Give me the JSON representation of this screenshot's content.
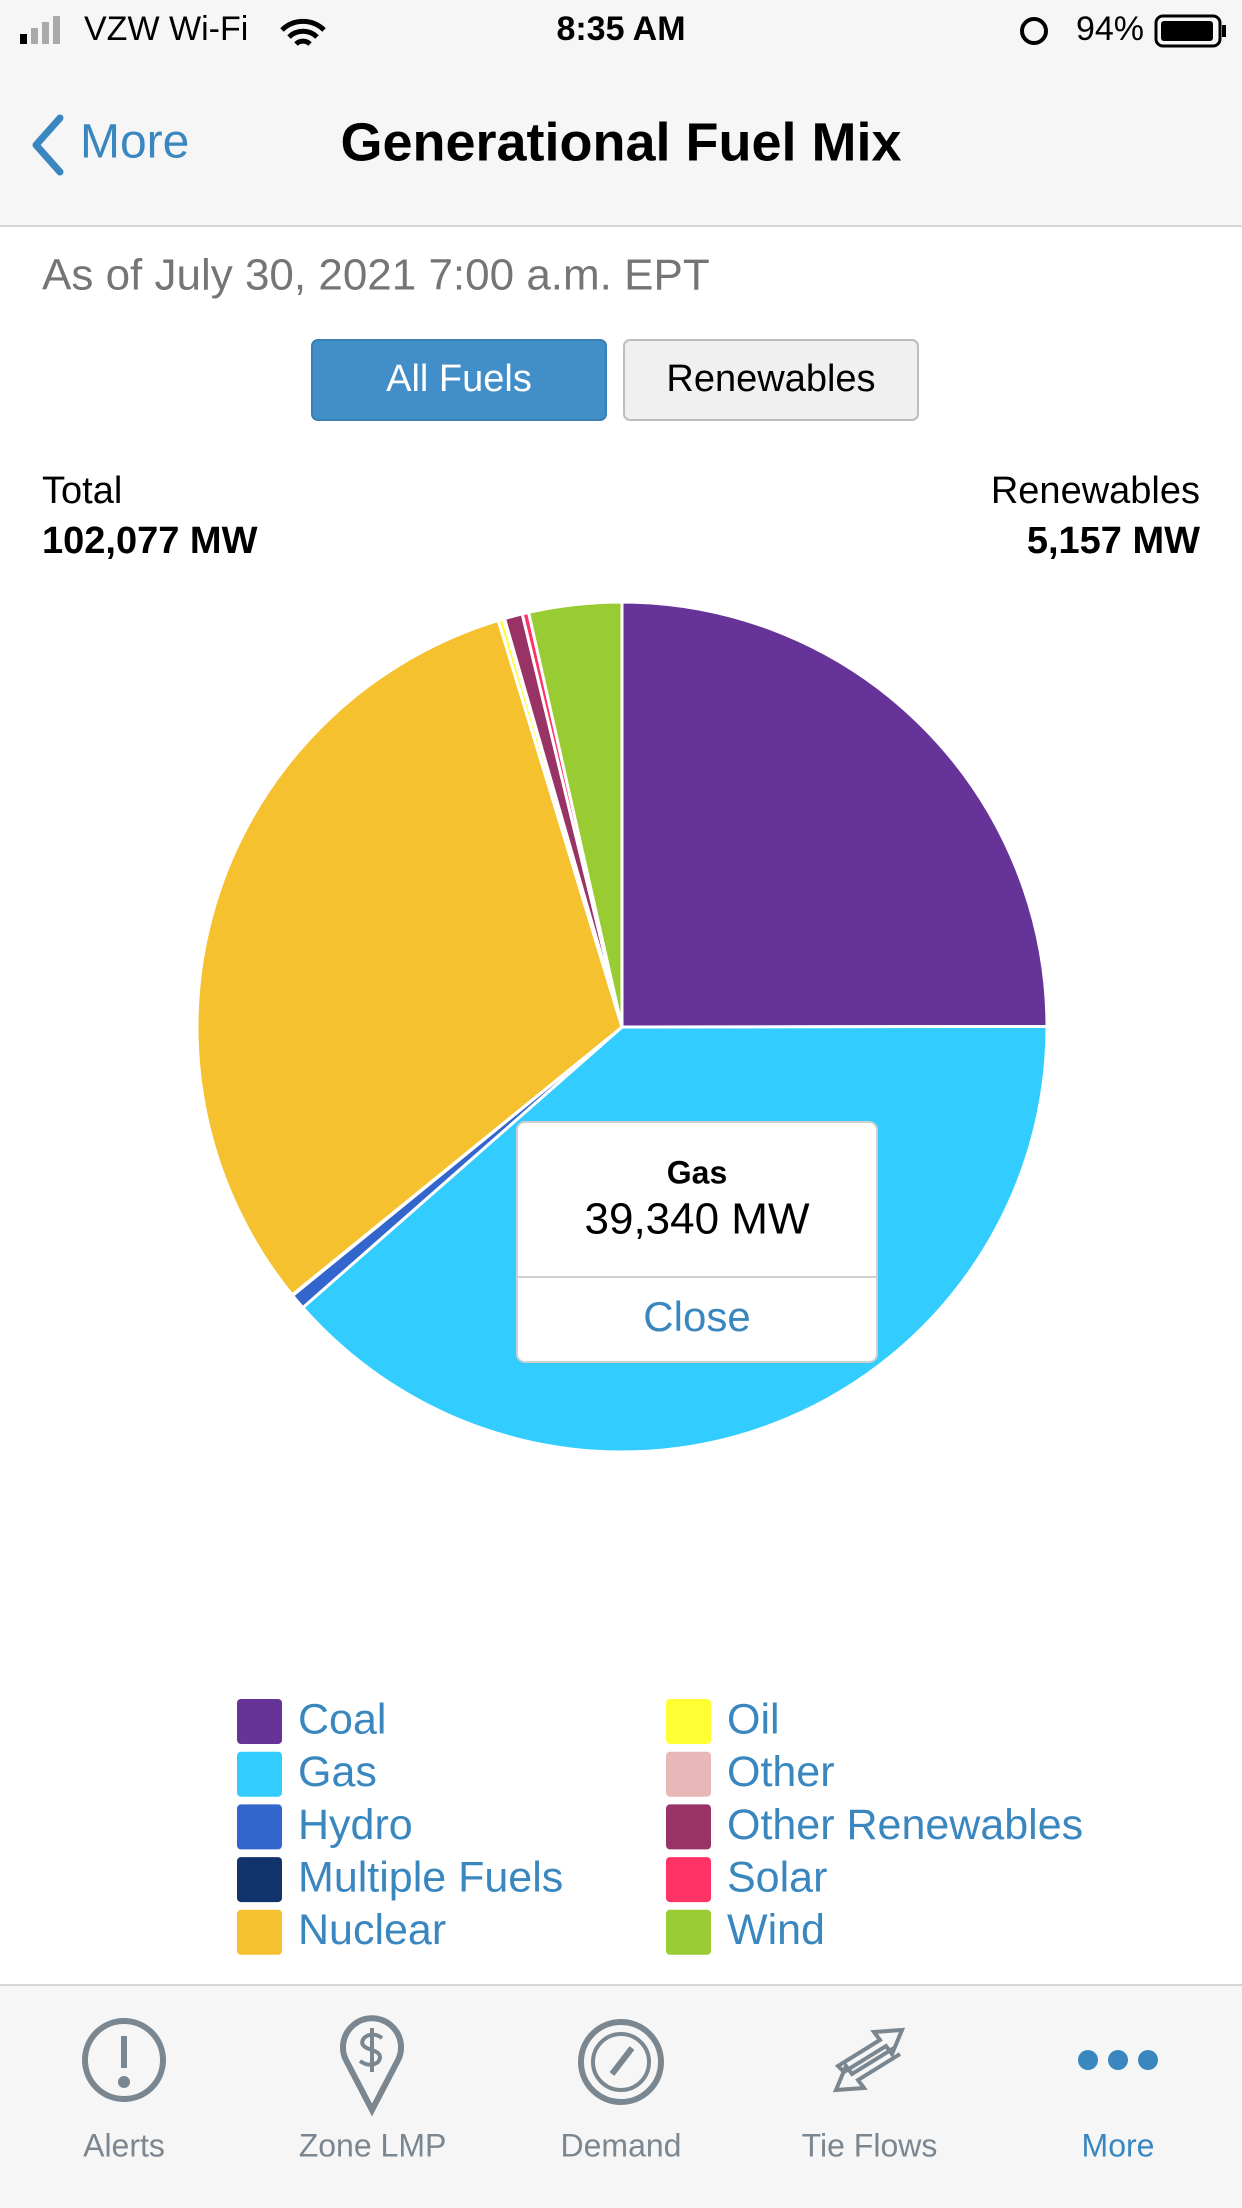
{
  "status_bar": {
    "carrier": "VZW Wi-Fi",
    "time": "8:35 AM",
    "battery": "94%"
  },
  "nav": {
    "back": "More",
    "title": "Generational Fuel Mix"
  },
  "as_of": "As of July 30, 2021 7:00 a.m. EPT",
  "toggle": {
    "options": [
      "All Fuels",
      "Renewables"
    ]
  },
  "summary": {
    "total_label": "Total",
    "total_value": "102,077 MW",
    "renewables_label": "Renewables",
    "renewables_value": "5,157 MW"
  },
  "chart_data": {
    "type": "pie",
    "categories": [
      "Coal",
      "Gas",
      "Hydro",
      "Multiple Fuels",
      "Nuclear",
      "Oil",
      "Other",
      "Other Renewables",
      "Solar",
      "Wind"
    ],
    "values": [
      25500,
      39340,
      607,
      30,
      31800,
      200,
      50,
      700,
      250,
      3600
    ],
    "colors": [
      "#663399",
      "#33ccff",
      "#3366cc",
      "#11336b",
      "#f5c12e",
      "#ffff33",
      "#e8b8b8",
      "#993366",
      "#ff3366",
      "#99cc33"
    ]
  },
  "tooltip": {
    "title": "Gas",
    "value": "39,340 MW",
    "action": "Close"
  },
  "tabs": [
    "Alerts",
    "Zone LMP",
    "Demand",
    "Tie Flows",
    "More"
  ]
}
